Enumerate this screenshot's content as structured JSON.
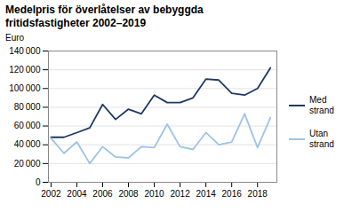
{
  "chart_data": {
    "type": "line",
    "title": "Medelpris för överlåtelser av bebyggda\nfritidsfastigheter 2002–2019",
    "ylabel": "Euro",
    "x": [
      2002,
      2003,
      2004,
      2005,
      2006,
      2007,
      2008,
      2009,
      2010,
      2011,
      2012,
      2013,
      2014,
      2015,
      2016,
      2017,
      2018,
      2019
    ],
    "series": [
      {
        "name": "Med\nstrand",
        "color": "#1f3864",
        "values": [
          48000,
          48000,
          53000,
          58000,
          83000,
          67000,
          78000,
          73000,
          93000,
          85000,
          85000,
          90000,
          110000,
          109000,
          95000,
          93000,
          100000,
          122000
        ]
      },
      {
        "name": "Utan\nstrand",
        "color": "#9dc3e6",
        "values": [
          47000,
          31000,
          43000,
          20000,
          38000,
          27000,
          26000,
          38000,
          37000,
          62000,
          38000,
          35000,
          53000,
          40000,
          43000,
          73000,
          37000,
          69000
        ]
      }
    ],
    "xlim": [
      2001.8,
      2019.5
    ],
    "xticks": [
      2002,
      2004,
      2006,
      2008,
      2010,
      2012,
      2014,
      2016,
      2018
    ],
    "ylim": [
      0,
      140000
    ],
    "yticks": [
      0,
      {
        "value": 20000,
        "label": "20 000"
      },
      {
        "value": 40000,
        "label": "40 000"
      },
      {
        "value": 60000,
        "label": "60 000"
      },
      {
        "value": 80000,
        "label": "80 000"
      },
      {
        "value": 100000,
        "label": "100 000"
      },
      {
        "value": 120000,
        "label": "120 000"
      },
      {
        "value": 140000,
        "label": "140 000"
      }
    ],
    "grid": true,
    "legend": "right"
  }
}
